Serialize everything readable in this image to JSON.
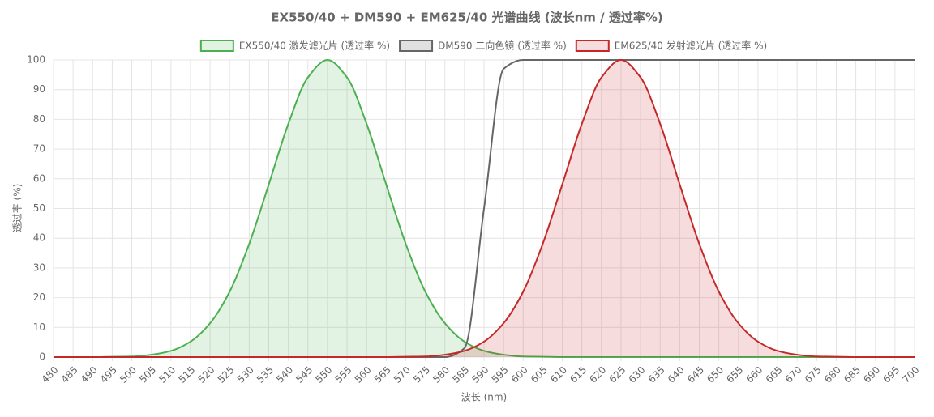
{
  "chart_data": {
    "type": "line",
    "title": "EX550/40 + DM590 + EM625/40 光谱曲线 (波长nm / 透过率%)",
    "x_label": "波长 (nm)",
    "y_label": "透过率 (%)",
    "x": [
      480,
      485,
      490,
      495,
      500,
      505,
      510,
      515,
      520,
      525,
      530,
      535,
      540,
      545,
      550,
      555,
      560,
      565,
      570,
      575,
      580,
      585,
      590,
      595,
      600,
      605,
      610,
      615,
      620,
      625,
      630,
      635,
      640,
      645,
      650,
      655,
      660,
      665,
      670,
      675,
      680,
      685,
      690,
      695,
      700
    ],
    "series": [
      {
        "name": "EX550/40 激发滤光片 (透过率 %)",
        "color": "#4caf50",
        "fill": true,
        "values": [
          0,
          0,
          0,
          0.1,
          0.2,
          0.8,
          2.1,
          5.2,
          11.4,
          22,
          38.1,
          58.1,
          78.5,
          94.1,
          100,
          94.1,
          78.5,
          58.1,
          38.1,
          22,
          11.4,
          5.2,
          2.1,
          0.8,
          0.2,
          0.1,
          0,
          0,
          0,
          0,
          0,
          0,
          0,
          0,
          0,
          0,
          0,
          0,
          0,
          0,
          0,
          0,
          0,
          0,
          0
        ]
      },
      {
        "name": "DM590 二向色镜 (透过率 %)",
        "color": "#666666",
        "fill": false,
        "values": [
          0,
          0,
          0,
          0,
          0,
          0,
          0,
          0,
          0,
          0,
          0,
          0,
          0,
          0,
          0,
          0,
          0,
          0,
          0,
          0,
          0,
          3,
          50,
          97,
          100,
          100,
          100,
          100,
          100,
          100,
          100,
          100,
          100,
          100,
          100,
          100,
          100,
          100,
          100,
          100,
          100,
          100,
          100,
          100,
          100
        ]
      },
      {
        "name": "EM625/40 发射滤光片 (透过率 %)",
        "color": "#c62828",
        "fill": true,
        "values": [
          0,
          0,
          0,
          0,
          0,
          0,
          0,
          0,
          0,
          0,
          0,
          0,
          0,
          0,
          0,
          0,
          0,
          0,
          0.1,
          0.2,
          0.8,
          2.1,
          5.2,
          11.4,
          22,
          38.1,
          58.1,
          78.5,
          94.1,
          100,
          94.1,
          78.5,
          58.1,
          38.1,
          22,
          11.4,
          5.2,
          2.1,
          0.8,
          0.2,
          0.1,
          0,
          0,
          0,
          0
        ]
      }
    ],
    "xlim": [
      480,
      700
    ],
    "xticks": [
      480,
      485,
      490,
      495,
      500,
      505,
      510,
      515,
      520,
      525,
      530,
      535,
      540,
      545,
      550,
      555,
      560,
      565,
      570,
      575,
      580,
      585,
      590,
      595,
      600,
      605,
      610,
      615,
      620,
      625,
      630,
      635,
      640,
      645,
      650,
      655,
      660,
      665,
      670,
      675,
      680,
      685,
      690,
      695,
      700
    ],
    "ylim": [
      0,
      100
    ],
    "yticks": [
      0,
      10,
      20,
      30,
      40,
      50,
      60,
      70,
      80,
      90,
      100
    ],
    "grid": true,
    "legend": "top"
  }
}
